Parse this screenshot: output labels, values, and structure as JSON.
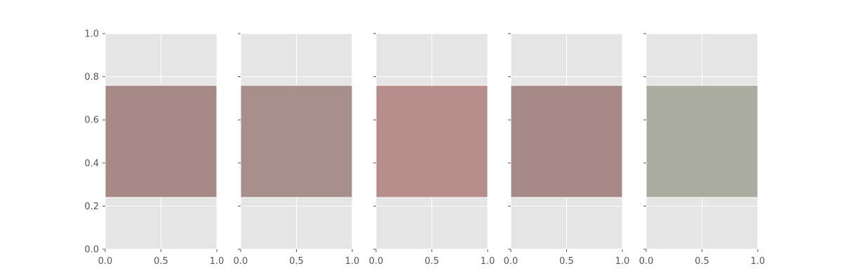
{
  "chart_data": {
    "type": "area",
    "grid": true,
    "style": "ggplot",
    "xlim": [
      0,
      1
    ],
    "ylim": [
      0,
      1
    ],
    "xticks": [
      "0.0",
      "0.5",
      "1.0"
    ],
    "yticks": [
      "0.0",
      "0.2",
      "0.4",
      "0.6",
      "0.8",
      "1.0"
    ],
    "panels": [
      {
        "x": [
          0,
          1
        ],
        "y_low": 0.24,
        "y_high": 0.76,
        "color": "#a78a86"
      },
      {
        "x": [
          0,
          1
        ],
        "y_low": 0.24,
        "y_high": 0.76,
        "color": "#a68e8a"
      },
      {
        "x": [
          0,
          1
        ],
        "y_low": 0.24,
        "y_high": 0.76,
        "color": "#b88e8b"
      },
      {
        "x": [
          0,
          1
        ],
        "y_low": 0.24,
        "y_high": 0.76,
        "color": "#a68a87"
      },
      {
        "x": [
          0,
          1
        ],
        "y_low": 0.24,
        "y_high": 0.76,
        "color": "#abab9f"
      }
    ]
  }
}
